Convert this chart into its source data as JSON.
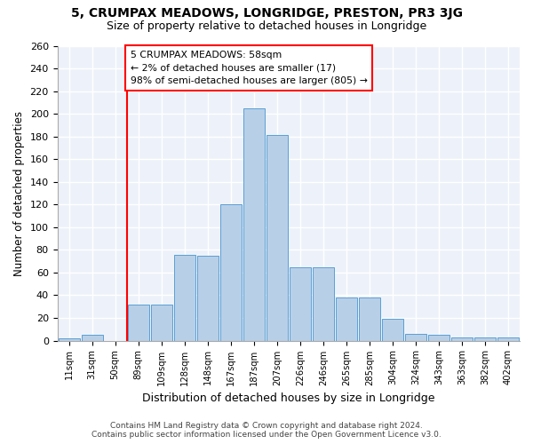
{
  "title": "5, CRUMPAX MEADOWS, LONGRIDGE, PRESTON, PR3 3JG",
  "subtitle": "Size of property relative to detached houses in Longridge",
  "xlabel": "Distribution of detached houses by size in Longridge",
  "ylabel": "Number of detached properties",
  "bar_color": "#b8cfe8",
  "bar_edge_color": "#5a9fd4",
  "background_color": "#edf2fa",
  "grid_color": "#ffffff",
  "categories": [
    "11sqm",
    "31sqm",
    "50sqm",
    "89sqm",
    "109sqm",
    "128sqm",
    "148sqm",
    "167sqm",
    "187sqm",
    "207sqm",
    "226sqm",
    "246sqm",
    "265sqm",
    "285sqm",
    "304sqm",
    "324sqm",
    "343sqm",
    "363sqm",
    "382sqm",
    "402sqm"
  ],
  "values": [
    2,
    5,
    0,
    32,
    32,
    76,
    75,
    120,
    205,
    181,
    65,
    65,
    38,
    38,
    19,
    6,
    5,
    3,
    3,
    3
  ],
  "annotation_text": "5 CRUMPAX MEADOWS: 58sqm\n← 2% of detached houses are smaller (17)\n98% of semi-detached houses are larger (805) →",
  "vline_x_index": 2.5,
  "ylim": [
    0,
    260
  ],
  "yticks": [
    0,
    20,
    40,
    60,
    80,
    100,
    120,
    140,
    160,
    180,
    200,
    220,
    240,
    260
  ],
  "footer_line1": "Contains HM Land Registry data © Crown copyright and database right 2024.",
  "footer_line2": "Contains public sector information licensed under the Open Government Licence v3.0."
}
